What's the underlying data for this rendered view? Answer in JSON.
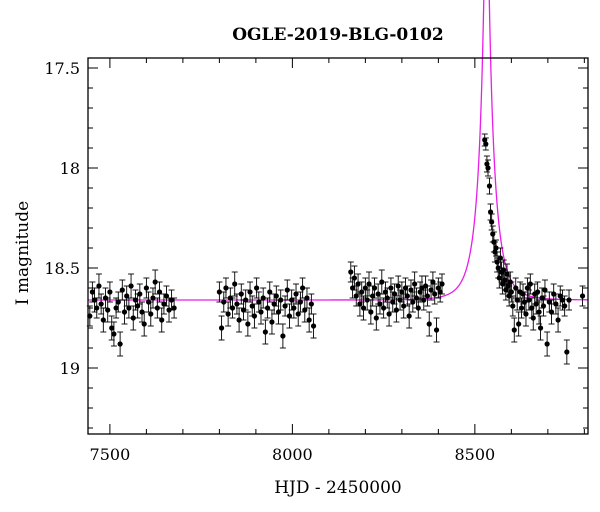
{
  "chart_data": {
    "type": "scatter",
    "title": "OGLE-2019-BLG-0102",
    "xlabel": "HJD - 2450000",
    "ylabel": "I magnitude",
    "xlim": [
      7440,
      8810
    ],
    "ylim": [
      19.33,
      17.45
    ],
    "y_inverted": true,
    "x_ticks": [
      7500,
      8000,
      8500
    ],
    "y_ticks": [
      17.5,
      18,
      18.5,
      19
    ],
    "x_tick_labels": [
      "7500",
      "8000",
      "8500"
    ],
    "y_tick_labels": [
      "17.5",
      "18",
      "18.5",
      "19"
    ],
    "grid": false,
    "colors": {
      "points": "#000000",
      "model": "#e81ee8",
      "axes": "#000000"
    },
    "model_curve": {
      "name": "",
      "baseline_mag": 18.66,
      "t0": 8532,
      "u0": 0.11,
      "tE": 44,
      "blending_fraction": 0.75
    },
    "series": [
      {
        "name": "",
        "points": [
          [
            7445,
            18.74,
            0.05
          ],
          [
            7452,
            18.62,
            0.05
          ],
          [
            7458,
            18.66,
            0.06
          ],
          [
            7464,
            18.7,
            0.05
          ],
          [
            7470,
            18.59,
            0.06
          ],
          [
            7476,
            18.68,
            0.05
          ],
          [
            7482,
            18.76,
            0.06
          ],
          [
            7488,
            18.65,
            0.05
          ],
          [
            7494,
            18.71,
            0.06
          ],
          [
            7500,
            18.62,
            0.05
          ],
          [
            7505,
            18.8,
            0.06
          ],
          [
            7511,
            18.83,
            0.06
          ],
          [
            7517,
            18.7,
            0.05
          ],
          [
            7523,
            18.67,
            0.05
          ],
          [
            7528,
            18.88,
            0.06
          ],
          [
            7534,
            18.61,
            0.05
          ],
          [
            7540,
            18.72,
            0.06
          ],
          [
            7546,
            18.64,
            0.05
          ],
          [
            7552,
            18.7,
            0.05
          ],
          [
            7558,
            18.59,
            0.06
          ],
          [
            7564,
            18.75,
            0.06
          ],
          [
            7570,
            18.66,
            0.05
          ],
          [
            7576,
            18.69,
            0.06
          ],
          [
            7582,
            18.63,
            0.05
          ],
          [
            7588,
            18.72,
            0.05
          ],
          [
            7594,
            18.78,
            0.06
          ],
          [
            7600,
            18.6,
            0.05
          ],
          [
            7606,
            18.67,
            0.05
          ],
          [
            7612,
            18.73,
            0.06
          ],
          [
            7618,
            18.65,
            0.05
          ],
          [
            7624,
            18.57,
            0.06
          ],
          [
            7630,
            18.7,
            0.05
          ],
          [
            7636,
            18.62,
            0.05
          ],
          [
            7642,
            18.76,
            0.06
          ],
          [
            7648,
            18.68,
            0.05
          ],
          [
            7655,
            18.64,
            0.05
          ],
          [
            7662,
            18.71,
            0.06
          ],
          [
            7669,
            18.66,
            0.05
          ],
          [
            7676,
            18.7,
            0.05
          ],
          [
            7800,
            18.62,
            0.05
          ],
          [
            7806,
            18.8,
            0.06
          ],
          [
            7812,
            18.67,
            0.05
          ],
          [
            7818,
            18.6,
            0.05
          ],
          [
            7824,
            18.73,
            0.06
          ],
          [
            7830,
            18.65,
            0.05
          ],
          [
            7836,
            18.7,
            0.05
          ],
          [
            7842,
            18.58,
            0.06
          ],
          [
            7848,
            18.68,
            0.05
          ],
          [
            7854,
            18.76,
            0.06
          ],
          [
            7860,
            18.63,
            0.05
          ],
          [
            7866,
            18.71,
            0.05
          ],
          [
            7872,
            18.66,
            0.05
          ],
          [
            7878,
            18.78,
            0.06
          ],
          [
            7884,
            18.62,
            0.05
          ],
          [
            7890,
            18.69,
            0.05
          ],
          [
            7896,
            18.74,
            0.06
          ],
          [
            7902,
            18.6,
            0.05
          ],
          [
            7908,
            18.67,
            0.05
          ],
          [
            7914,
            18.72,
            0.06
          ],
          [
            7920,
            18.65,
            0.05
          ],
          [
            7926,
            18.82,
            0.06
          ],
          [
            7932,
            18.7,
            0.05
          ],
          [
            7938,
            18.62,
            0.05
          ],
          [
            7944,
            18.77,
            0.06
          ],
          [
            7950,
            18.68,
            0.05
          ],
          [
            7956,
            18.64,
            0.05
          ],
          [
            7962,
            18.72,
            0.06
          ],
          [
            7968,
            18.66,
            0.05
          ],
          [
            7974,
            18.84,
            0.06
          ],
          [
            7980,
            18.69,
            0.05
          ],
          [
            7986,
            18.61,
            0.05
          ],
          [
            7992,
            18.74,
            0.06
          ],
          [
            7998,
            18.66,
            0.05
          ],
          [
            8004,
            18.7,
            0.05
          ],
          [
            8010,
            18.63,
            0.05
          ],
          [
            8016,
            18.73,
            0.06
          ],
          [
            8022,
            18.67,
            0.05
          ],
          [
            8028,
            18.6,
            0.05
          ],
          [
            8034,
            18.71,
            0.06
          ],
          [
            8040,
            18.65,
            0.05
          ],
          [
            8046,
            18.76,
            0.06
          ],
          [
            8052,
            18.68,
            0.05
          ],
          [
            8058,
            18.79,
            0.06
          ],
          [
            8160,
            18.52,
            0.05
          ],
          [
            8165,
            18.6,
            0.05
          ],
          [
            8170,
            18.55,
            0.06
          ],
          [
            8175,
            18.64,
            0.05
          ],
          [
            8180,
            18.58,
            0.05
          ],
          [
            8185,
            18.68,
            0.06
          ],
          [
            8190,
            18.62,
            0.05
          ],
          [
            8195,
            18.7,
            0.06
          ],
          [
            8200,
            18.6,
            0.05
          ],
          [
            8205,
            18.66,
            0.05
          ],
          [
            8210,
            18.58,
            0.06
          ],
          [
            8215,
            18.72,
            0.06
          ],
          [
            8220,
            18.64,
            0.05
          ],
          [
            8225,
            18.6,
            0.05
          ],
          [
            8230,
            18.75,
            0.06
          ],
          [
            8235,
            18.63,
            0.05
          ],
          [
            8240,
            18.68,
            0.05
          ],
          [
            8245,
            18.57,
            0.06
          ],
          [
            8250,
            18.7,
            0.05
          ],
          [
            8255,
            18.62,
            0.05
          ],
          [
            8260,
            18.65,
            0.05
          ],
          [
            8265,
            18.73,
            0.06
          ],
          [
            8270,
            18.6,
            0.05
          ],
          [
            8275,
            18.67,
            0.05
          ],
          [
            8280,
            18.63,
            0.05
          ],
          [
            8285,
            18.71,
            0.06
          ],
          [
            8290,
            18.59,
            0.05
          ],
          [
            8295,
            18.66,
            0.05
          ],
          [
            8300,
            18.62,
            0.05
          ],
          [
            8305,
            18.69,
            0.06
          ],
          [
            8310,
            18.6,
            0.05
          ],
          [
            8315,
            18.64,
            0.05
          ],
          [
            8320,
            18.74,
            0.06
          ],
          [
            8325,
            18.61,
            0.05
          ],
          [
            8330,
            18.67,
            0.05
          ],
          [
            8335,
            18.58,
            0.06
          ],
          [
            8340,
            18.65,
            0.05
          ],
          [
            8345,
            18.7,
            0.05
          ],
          [
            8350,
            18.62,
            0.05
          ],
          [
            8355,
            18.6,
            0.06
          ],
          [
            8360,
            18.66,
            0.05
          ],
          [
            8365,
            18.59,
            0.05
          ],
          [
            8370,
            18.64,
            0.05
          ],
          [
            8375,
            18.78,
            0.06
          ],
          [
            8380,
            18.61,
            0.05
          ],
          [
            8385,
            18.57,
            0.05
          ],
          [
            8390,
            18.63,
            0.05
          ],
          [
            8395,
            18.81,
            0.06
          ],
          [
            8400,
            18.6,
            0.05
          ],
          [
            8405,
            18.62,
            0.05
          ],
          [
            8410,
            18.58,
            0.05
          ],
          [
            8527,
            17.86,
            0.03
          ],
          [
            8530,
            17.88,
            0.03
          ],
          [
            8533,
            17.98,
            0.04
          ],
          [
            8536,
            18.0,
            0.04
          ],
          [
            8540,
            18.09,
            0.04
          ],
          [
            8543,
            18.22,
            0.04
          ],
          [
            8546,
            18.27,
            0.04
          ],
          [
            8549,
            18.33,
            0.04
          ],
          [
            8552,
            18.37,
            0.05
          ],
          [
            8555,
            18.42,
            0.05
          ],
          [
            8558,
            18.4,
            0.04
          ],
          [
            8561,
            18.47,
            0.05
          ],
          [
            8564,
            18.5,
            0.05
          ],
          [
            8567,
            18.55,
            0.05
          ],
          [
            8570,
            18.45,
            0.05
          ],
          [
            8573,
            18.52,
            0.05
          ],
          [
            8576,
            18.58,
            0.05
          ],
          [
            8579,
            18.51,
            0.05
          ],
          [
            8582,
            18.56,
            0.05
          ],
          [
            8585,
            18.61,
            0.05
          ],
          [
            8588,
            18.53,
            0.05
          ],
          [
            8591,
            18.59,
            0.05
          ],
          [
            8594,
            18.64,
            0.05
          ],
          [
            8597,
            18.57,
            0.05
          ],
          [
            8600,
            18.62,
            0.05
          ],
          [
            8604,
            18.69,
            0.05
          ],
          [
            8608,
            18.81,
            0.06
          ],
          [
            8612,
            18.6,
            0.05
          ],
          [
            8616,
            18.66,
            0.05
          ],
          [
            8620,
            18.78,
            0.06
          ],
          [
            8624,
            18.62,
            0.05
          ],
          [
            8628,
            18.7,
            0.05
          ],
          [
            8632,
            18.63,
            0.05
          ],
          [
            8636,
            18.67,
            0.05
          ],
          [
            8640,
            18.73,
            0.06
          ],
          [
            8644,
            18.6,
            0.05
          ],
          [
            8648,
            18.66,
            0.05
          ],
          [
            8652,
            18.58,
            0.05
          ],
          [
            8656,
            18.7,
            0.05
          ],
          [
            8660,
            18.75,
            0.06
          ],
          [
            8664,
            18.63,
            0.05
          ],
          [
            8668,
            18.68,
            0.05
          ],
          [
            8672,
            18.62,
            0.05
          ],
          [
            8676,
            18.72,
            0.06
          ],
          [
            8680,
            18.8,
            0.06
          ],
          [
            8684,
            18.65,
            0.05
          ],
          [
            8688,
            18.69,
            0.05
          ],
          [
            8692,
            18.61,
            0.05
          ],
          [
            8698,
            18.88,
            0.06
          ],
          [
            8704,
            18.67,
            0.05
          ],
          [
            8710,
            18.72,
            0.06
          ],
          [
            8716,
            18.63,
            0.05
          ],
          [
            8722,
            18.68,
            0.05
          ],
          [
            8728,
            18.76,
            0.06
          ],
          [
            8734,
            18.64,
            0.05
          ],
          [
            8740,
            18.66,
            0.05
          ],
          [
            8746,
            18.69,
            0.05
          ],
          [
            8752,
            18.92,
            0.06
          ],
          [
            8758,
            18.66,
            0.05
          ],
          [
            8795,
            18.64,
            0.05
          ]
        ]
      }
    ]
  }
}
